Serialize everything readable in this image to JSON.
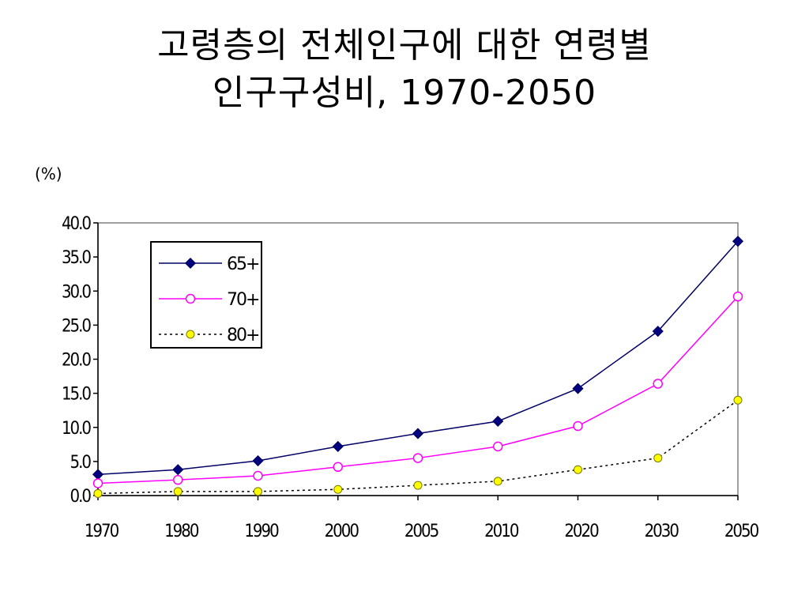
{
  "slide": {
    "title_line1": "고령층의 전체인구에 대한 연령별",
    "title_line2": "인구구성비, 1970-2050"
  },
  "chart_data": {
    "type": "line",
    "y_unit_label": "(%)",
    "categories": [
      "1970",
      "1980",
      "1990",
      "2000",
      "2005",
      "2010",
      "2020",
      "2030",
      "2050"
    ],
    "yticks": [
      "0.0",
      "5.0",
      "10.0",
      "15.0",
      "20.0",
      "25.0",
      "30.0",
      "35.0",
      "40.0"
    ],
    "ylim": [
      0,
      40
    ],
    "grid": false,
    "legend_position": "top-left",
    "series": [
      {
        "name": "65+",
        "values": [
          3.1,
          3.8,
          5.1,
          7.2,
          9.1,
          10.9,
          15.7,
          24.1,
          37.3
        ],
        "color": "#000066",
        "line_style": "solid",
        "marker": "filled-diamond",
        "marker_fill": "#000080"
      },
      {
        "name": "70+",
        "values": [
          1.8,
          2.3,
          2.9,
          4.2,
          5.5,
          7.2,
          10.2,
          16.4,
          29.2
        ],
        "color": "#ff00ff",
        "line_style": "solid",
        "marker": "open-circle",
        "marker_fill": "#ffffff"
      },
      {
        "name": "80+",
        "values": [
          0.3,
          0.6,
          0.6,
          0.9,
          1.5,
          2.1,
          3.8,
          5.5,
          14.0
        ],
        "color": "#000000",
        "line_style": "dotted",
        "marker": "filled-circle",
        "marker_fill": "#ffff00"
      }
    ]
  }
}
